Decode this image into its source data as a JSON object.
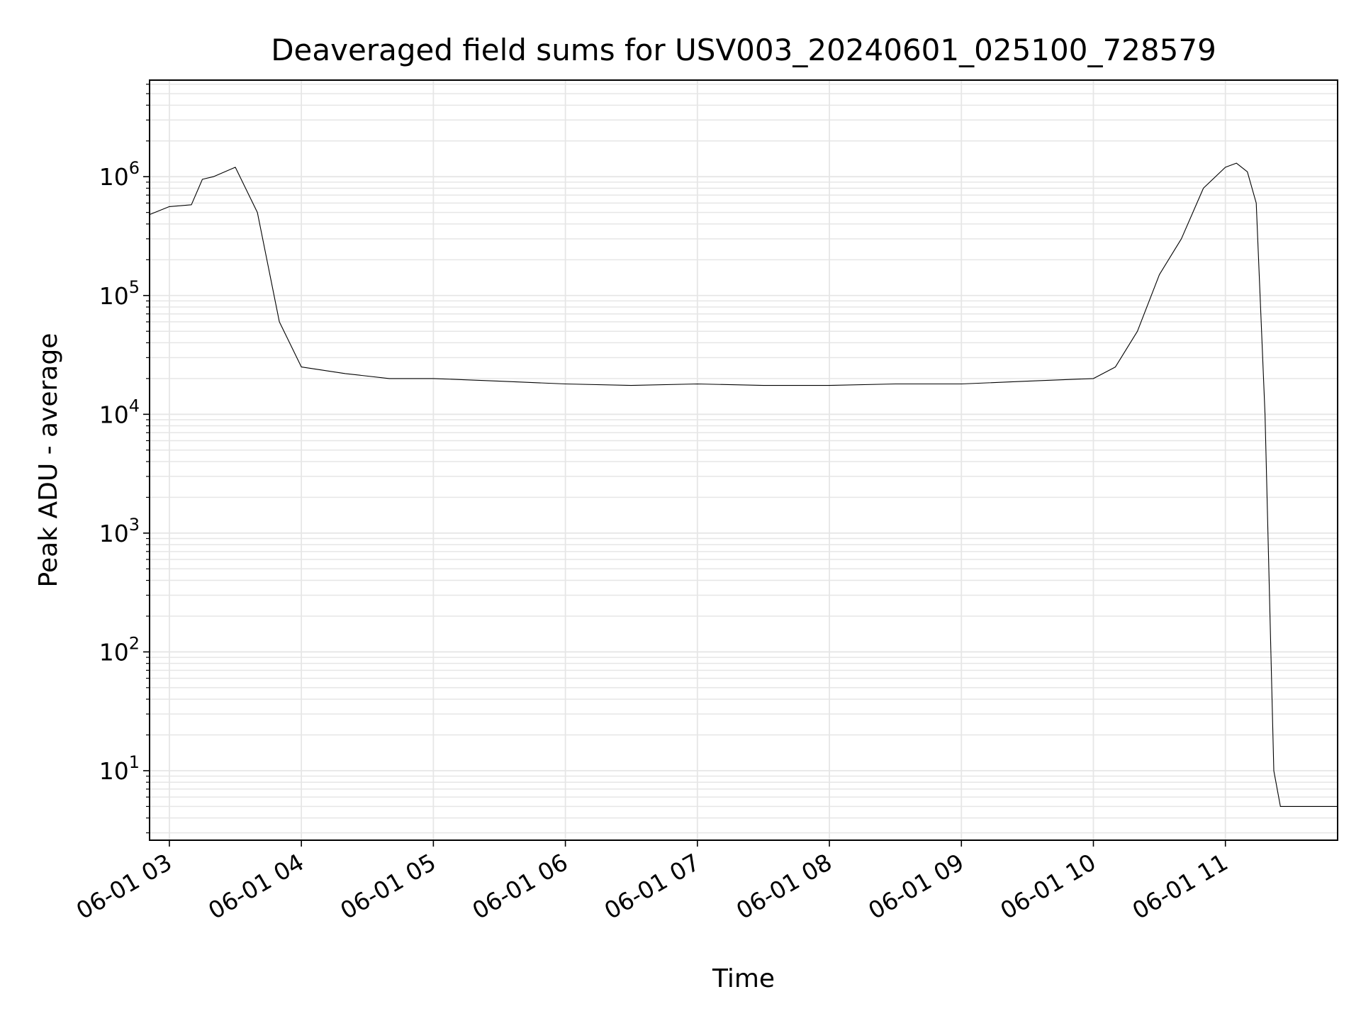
{
  "chart_data": {
    "type": "line",
    "title": "Deaveraged field sums for USV003_20240601_025100_728579",
    "xlabel": "Time",
    "ylabel": "Peak ADU - average",
    "x_ticks": [
      "06-01 03",
      "06-01 04",
      "06-01 05",
      "06-01 06",
      "06-01 07",
      "06-01 08",
      "06-01 09",
      "06-01 10",
      "06-01 11"
    ],
    "y_scale": "log",
    "y_ticks": [
      {
        "base": "10",
        "exp": "1"
      },
      {
        "base": "10",
        "exp": "2"
      },
      {
        "base": "10",
        "exp": "3"
      },
      {
        "base": "10",
        "exp": "4"
      },
      {
        "base": "10",
        "exp": "5"
      },
      {
        "base": "10",
        "exp": "6"
      }
    ],
    "xlim": [
      "2024-06-01 02:51",
      "2024-06-01 11:51"
    ],
    "ylim": [
      2.6,
      6500000
    ],
    "grid": true,
    "line_color": "#000000",
    "grid_color": "#e6e6e6",
    "series": [
      {
        "x": [
          "2024-06-01 02:51",
          "2024-06-01 03:00",
          "2024-06-01 03:10",
          "2024-06-01 03:15",
          "2024-06-01 03:20",
          "2024-06-01 03:30",
          "2024-06-01 03:40",
          "2024-06-01 03:50",
          "2024-06-01 04:00",
          "2024-06-01 04:20",
          "2024-06-01 04:40",
          "2024-06-01 05:00",
          "2024-06-01 05:30",
          "2024-06-01 06:00",
          "2024-06-01 06:30",
          "2024-06-01 07:00",
          "2024-06-01 07:30",
          "2024-06-01 08:00",
          "2024-06-01 08:30",
          "2024-06-01 09:00",
          "2024-06-01 09:30",
          "2024-06-01 10:00",
          "2024-06-01 10:10",
          "2024-06-01 10:20",
          "2024-06-01 10:30",
          "2024-06-01 10:40",
          "2024-06-01 10:50",
          "2024-06-01 11:00",
          "2024-06-01 11:05",
          "2024-06-01 11:10",
          "2024-06-01 11:14",
          "2024-06-01 11:18",
          "2024-06-01 11:22",
          "2024-06-01 11:25",
          "2024-06-01 11:30",
          "2024-06-01 11:40",
          "2024-06-01 11:51"
        ],
        "y": [
          480000,
          560000,
          580000,
          950000,
          1000000,
          1200000,
          500000,
          60000,
          25000,
          22000,
          20000,
          20000,
          19000,
          18000,
          17500,
          18000,
          17500,
          17500,
          18000,
          18000,
          19000,
          20000,
          25000,
          50000,
          150000,
          300000,
          800000,
          1200000,
          1300000,
          1100000,
          600000,
          10000,
          10,
          5,
          5,
          5,
          5
        ],
        "upper_envelope_note": ""
      }
    ]
  }
}
